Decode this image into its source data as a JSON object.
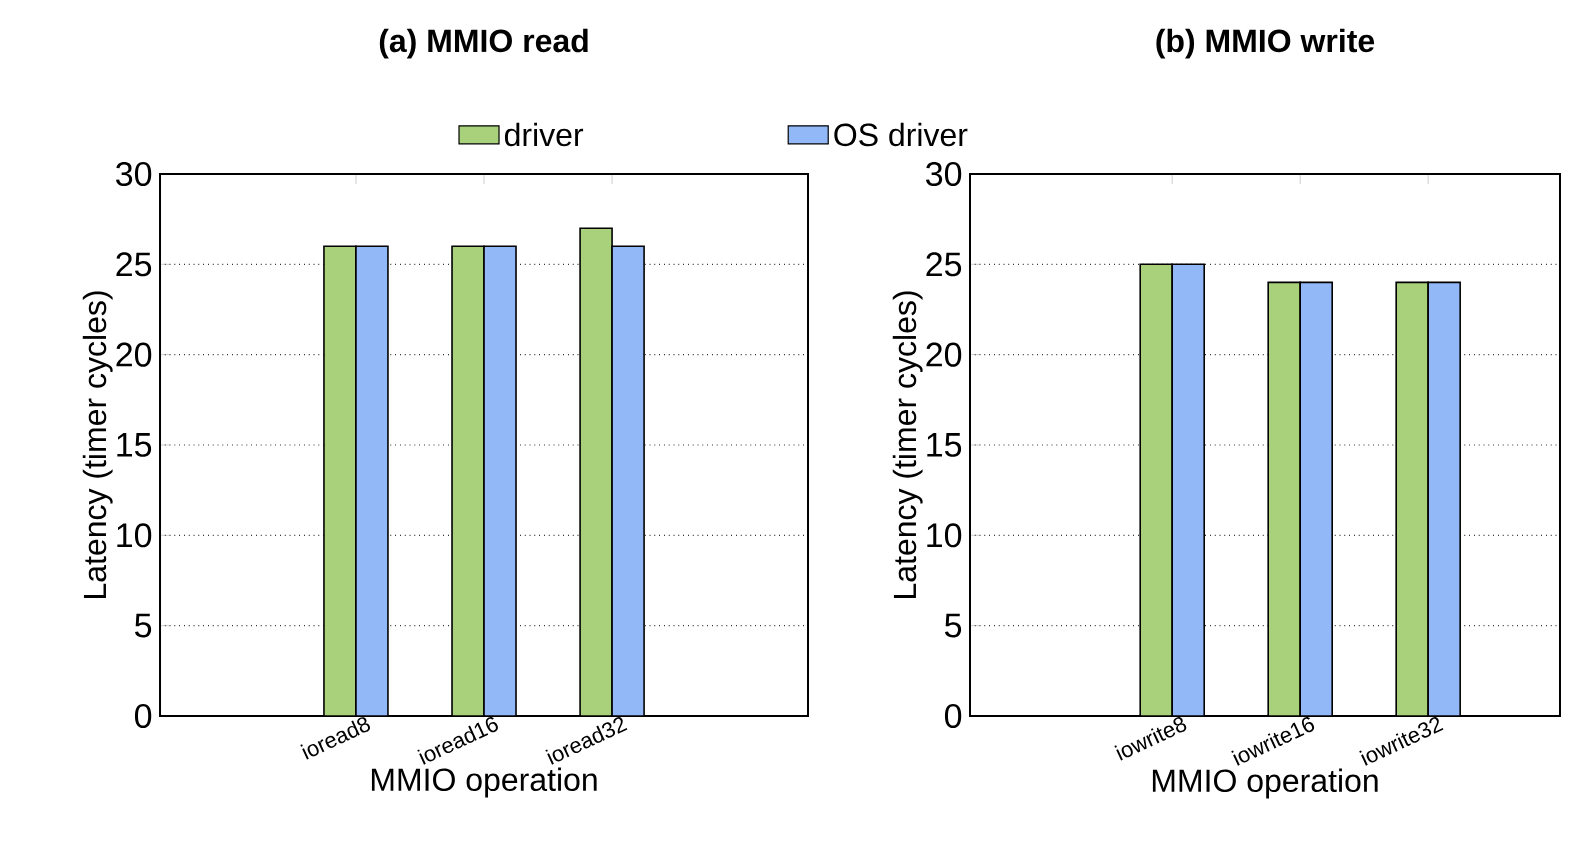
{
  "chart_data": [
    {
      "type": "bar",
      "title": "(a) MMIO read",
      "xlabel": "MMIO operation",
      "ylabel": "Latency (timer cycles)",
      "categories": [
        "ioread8",
        "ioread16",
        "ioread32"
      ],
      "series": [
        {
          "name": "driver",
          "color": "#a9d07a",
          "values": [
            26,
            26,
            27
          ]
        },
        {
          "name": "OS driver",
          "color": "#92b8f8",
          "values": [
            26,
            26,
            26
          ]
        }
      ],
      "ylim": [
        0,
        30
      ],
      "yticks": [
        0,
        5,
        10,
        15,
        20,
        25,
        30
      ],
      "grid": "y",
      "legend": "top"
    },
    {
      "type": "bar",
      "title": "(b) MMIO write",
      "xlabel": "MMIO operation",
      "ylabel": "Latency (timer cycles)",
      "categories": [
        "iowrite8",
        "iowrite16",
        "iowrite32"
      ],
      "series": [
        {
          "color": "#a9d07a",
          "values": [
            25,
            24,
            24
          ]
        },
        {
          "color": "#92b8f8",
          "values": [
            25,
            24,
            24
          ]
        }
      ],
      "ylim": [
        0,
        30
      ],
      "yticks": [
        0,
        5,
        10,
        15,
        20,
        25,
        30
      ],
      "grid": "y"
    }
  ]
}
